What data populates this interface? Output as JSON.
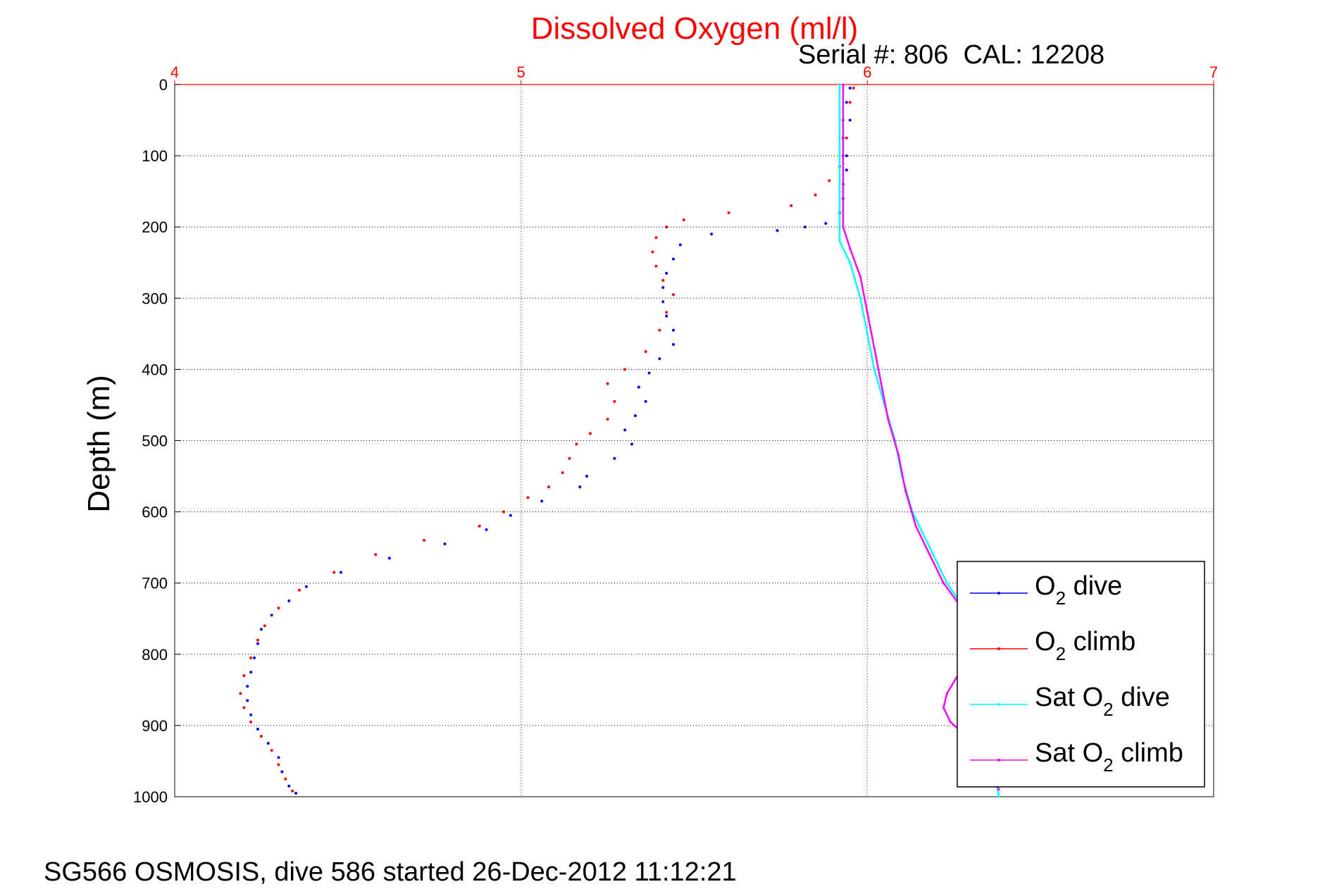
{
  "chart_data": {
    "type": "scatter",
    "title": "Dissolved Oxygen (ml/l)",
    "subtitle": "Serial #: 806  CAL: 12208",
    "ylabel": "Depth (m)",
    "xlabel": "",
    "caption": "SG566 OSMOSIS, dive 586 started 26-Dec-2012 11:12:21",
    "xlim": [
      4,
      7
    ],
    "ylim": [
      0,
      1000
    ],
    "y_reversed": true,
    "x_axis_position": "top",
    "grid": true,
    "legend_position": "bottom-right",
    "xticks": [
      "4",
      "5",
      "6",
      "7"
    ],
    "yticks": [
      "0",
      "100",
      "200",
      "300",
      "400",
      "500",
      "600",
      "700",
      "800",
      "900",
      "1000"
    ],
    "series": [
      {
        "name": "O2 dive",
        "legend_main": "O",
        "legend_sub": "2",
        "legend_rest": " dive",
        "color": "#0000ff",
        "style": "dots",
        "points": [
          [
            5.95,
            5
          ],
          [
            5.94,
            25
          ],
          [
            5.95,
            50
          ],
          [
            5.93,
            75
          ],
          [
            5.94,
            100
          ],
          [
            5.94,
            120
          ],
          [
            5.93,
            140
          ],
          [
            5.93,
            160
          ],
          [
            5.92,
            180
          ],
          [
            5.88,
            195
          ],
          [
            5.82,
            200
          ],
          [
            5.74,
            205
          ],
          [
            5.55,
            210
          ],
          [
            5.46,
            225
          ],
          [
            5.44,
            245
          ],
          [
            5.42,
            265
          ],
          [
            5.41,
            285
          ],
          [
            5.41,
            305
          ],
          [
            5.42,
            325
          ],
          [
            5.44,
            345
          ],
          [
            5.44,
            365
          ],
          [
            5.4,
            385
          ],
          [
            5.37,
            405
          ],
          [
            5.34,
            425
          ],
          [
            5.36,
            445
          ],
          [
            5.33,
            465
          ],
          [
            5.3,
            485
          ],
          [
            5.32,
            505
          ],
          [
            5.27,
            525
          ],
          [
            5.19,
            550
          ],
          [
            5.17,
            565
          ],
          [
            5.06,
            585
          ],
          [
            4.97,
            605
          ],
          [
            4.9,
            625
          ],
          [
            4.78,
            645
          ],
          [
            4.62,
            665
          ],
          [
            4.48,
            685
          ],
          [
            4.38,
            705
          ],
          [
            4.33,
            725
          ],
          [
            4.28,
            745
          ],
          [
            4.25,
            765
          ],
          [
            4.24,
            785
          ],
          [
            4.23,
            805
          ],
          [
            4.22,
            825
          ],
          [
            4.21,
            845
          ],
          [
            4.21,
            865
          ],
          [
            4.22,
            885
          ],
          [
            4.24,
            905
          ],
          [
            4.27,
            925
          ],
          [
            4.3,
            945
          ],
          [
            4.31,
            965
          ],
          [
            4.33,
            985
          ],
          [
            4.35,
            995
          ]
        ]
      },
      {
        "name": "O2 climb",
        "legend_main": "O",
        "legend_sub": "2",
        "legend_rest": " climb",
        "color": "#ff0000",
        "style": "dots",
        "points": [
          [
            5.96,
            5
          ],
          [
            5.95,
            25
          ],
          [
            5.93,
            50
          ],
          [
            5.94,
            75
          ],
          [
            5.93,
            100
          ],
          [
            5.92,
            115
          ],
          [
            5.89,
            135
          ],
          [
            5.85,
            155
          ],
          [
            5.78,
            170
          ],
          [
            5.6,
            180
          ],
          [
            5.47,
            190
          ],
          [
            5.42,
            200
          ],
          [
            5.39,
            215
          ],
          [
            5.38,
            235
          ],
          [
            5.39,
            255
          ],
          [
            5.41,
            275
          ],
          [
            5.44,
            295
          ],
          [
            5.42,
            320
          ],
          [
            5.4,
            345
          ],
          [
            5.36,
            375
          ],
          [
            5.3,
            400
          ],
          [
            5.25,
            420
          ],
          [
            5.27,
            445
          ],
          [
            5.25,
            470
          ],
          [
            5.2,
            490
          ],
          [
            5.16,
            505
          ],
          [
            5.14,
            525
          ],
          [
            5.12,
            545
          ],
          [
            5.08,
            565
          ],
          [
            5.02,
            580
          ],
          [
            4.95,
            600
          ],
          [
            4.88,
            620
          ],
          [
            4.72,
            640
          ],
          [
            4.58,
            660
          ],
          [
            4.46,
            685
          ],
          [
            4.36,
            710
          ],
          [
            4.3,
            735
          ],
          [
            4.26,
            760
          ],
          [
            4.24,
            780
          ],
          [
            4.22,
            805
          ],
          [
            4.2,
            830
          ],
          [
            4.19,
            855
          ],
          [
            4.2,
            875
          ],
          [
            4.22,
            895
          ],
          [
            4.25,
            915
          ],
          [
            4.28,
            935
          ],
          [
            4.3,
            955
          ],
          [
            4.32,
            975
          ],
          [
            4.34,
            992
          ]
        ]
      },
      {
        "name": "Sat O2 dive",
        "legend_main": "Sat O",
        "legend_sub": "2",
        "legend_rest": " dive",
        "color": "#00ffff",
        "style": "line",
        "points": [
          [
            5.92,
            0
          ],
          [
            5.92,
            50
          ],
          [
            5.92,
            100
          ],
          [
            5.92,
            150
          ],
          [
            5.92,
            200
          ],
          [
            5.92,
            220
          ],
          [
            5.95,
            250
          ],
          [
            5.98,
            300
          ],
          [
            6.0,
            350
          ],
          [
            6.02,
            400
          ],
          [
            6.05,
            450
          ],
          [
            6.08,
            500
          ],
          [
            6.1,
            550
          ],
          [
            6.13,
            600
          ],
          [
            6.18,
            650
          ],
          [
            6.23,
            700
          ],
          [
            6.3,
            750
          ],
          [
            6.31,
            800
          ],
          [
            6.31,
            850
          ],
          [
            6.33,
            900
          ],
          [
            6.36,
            950
          ],
          [
            6.38,
            1000
          ]
        ]
      },
      {
        "name": "Sat O2 climb",
        "legend_main": "Sat O",
        "legend_sub": "2",
        "legend_rest": " climb",
        "color": "#ff00ff",
        "style": "line",
        "points": [
          [
            5.93,
            0
          ],
          [
            5.93,
            50
          ],
          [
            5.93,
            100
          ],
          [
            5.93,
            150
          ],
          [
            5.93,
            200
          ],
          [
            5.95,
            230
          ],
          [
            5.98,
            270
          ],
          [
            6.0,
            320
          ],
          [
            6.02,
            370
          ],
          [
            6.04,
            420
          ],
          [
            6.06,
            470
          ],
          [
            6.09,
            520
          ],
          [
            6.11,
            570
          ],
          [
            6.14,
            620
          ],
          [
            6.18,
            660
          ],
          [
            6.22,
            700
          ],
          [
            6.28,
            740
          ],
          [
            6.31,
            790
          ],
          [
            6.23,
            855
          ],
          [
            6.22,
            875
          ],
          [
            6.24,
            895
          ],
          [
            6.32,
            930
          ],
          [
            6.38,
            990
          ]
        ]
      }
    ]
  }
}
